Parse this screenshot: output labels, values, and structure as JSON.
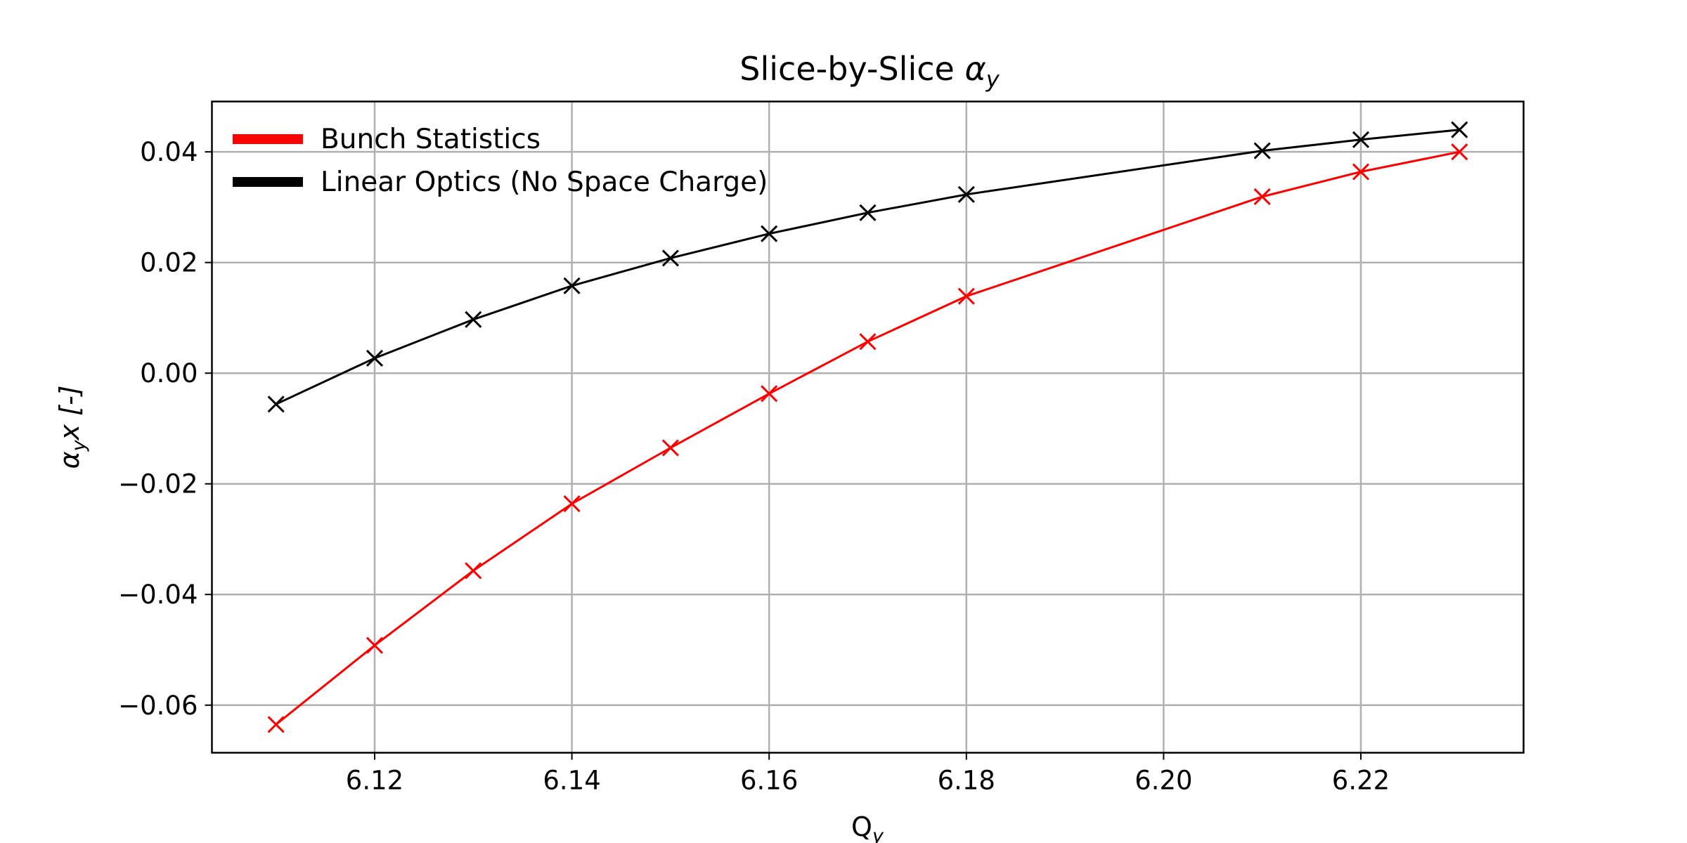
{
  "chart_data": {
    "type": "line",
    "title": "Slice-by-Slice",
    "title_symbol": "α",
    "title_symbol_sub": "y",
    "xlabel": "Q",
    "xlabel_sub": "y",
    "ylabel_symbol": "α",
    "ylabel_sub": "y",
    "ylabel_rest": "x [-]",
    "xlim": [
      6.1035,
      6.2365
    ],
    "ylim": [
      -0.0686,
      0.0491
    ],
    "xticks": [
      6.12,
      6.14,
      6.16,
      6.18,
      6.2,
      6.22
    ],
    "xtick_labels": [
      "6.12",
      "6.14",
      "6.16",
      "6.18",
      "6.20",
      "6.22"
    ],
    "yticks": [
      0.04,
      0.02,
      0.0,
      -0.02,
      -0.04,
      -0.06
    ],
    "ytick_labels": [
      "0.04",
      "0.02",
      "0.00",
      "−0.02",
      "−0.04",
      "−0.06"
    ],
    "grid": true,
    "legend_position": "top-left",
    "marker": "x",
    "series": [
      {
        "name": "Bunch Statistics",
        "color": "#ff0000",
        "x": [
          6.11,
          6.12,
          6.13,
          6.14,
          6.15,
          6.16,
          6.17,
          6.18,
          6.21,
          6.22,
          6.23
        ],
        "y": [
          -0.0635,
          -0.0492,
          -0.0357,
          -0.0236,
          -0.0135,
          -0.0037,
          0.0057,
          0.0139,
          0.0319,
          0.0364,
          0.04
        ]
      },
      {
        "name": "Linear Optics (No Space Charge)",
        "color": "#000000",
        "x": [
          6.11,
          6.12,
          6.13,
          6.14,
          6.15,
          6.16,
          6.17,
          6.18,
          6.21,
          6.22,
          6.23
        ],
        "y": [
          -0.0056,
          0.0027,
          0.0097,
          0.0158,
          0.0208,
          0.0252,
          0.029,
          0.0323,
          0.0402,
          0.0422,
          0.044
        ]
      }
    ]
  }
}
